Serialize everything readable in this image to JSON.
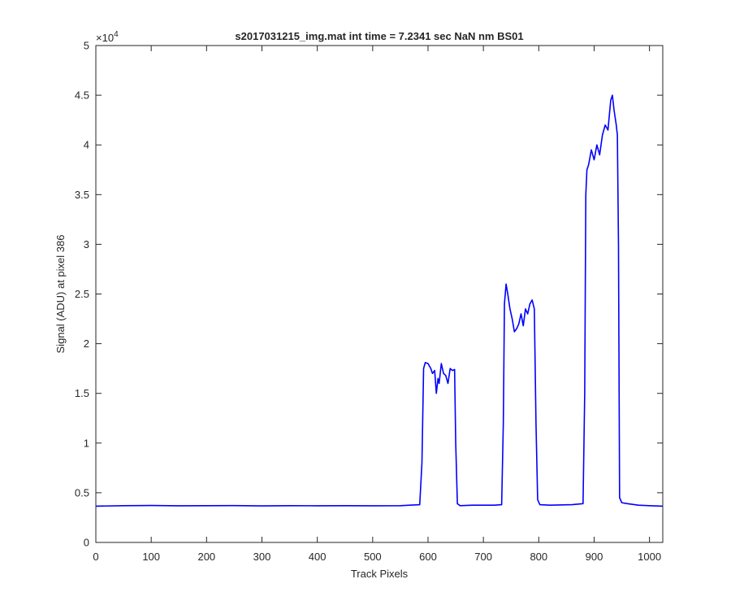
{
  "chart_data": {
    "type": "line",
    "title": "s2017031215_img.mat int time = 7.2341 sec  NaN nm BS01",
    "xlabel": "Track Pixels",
    "ylabel": "Signal (ADU) at pixel 386",
    "xlim": [
      0,
      1024
    ],
    "ylim": [
      0,
      50000
    ],
    "x_ticks": [
      0,
      100,
      200,
      300,
      400,
      500,
      600,
      700,
      800,
      900,
      1000
    ],
    "y_ticks": [
      0,
      5000,
      10000,
      15000,
      20000,
      25000,
      30000,
      35000,
      40000,
      45000,
      50000
    ],
    "y_tick_labels": [
      "0",
      "0.5",
      "1",
      "1.5",
      "2",
      "2.5",
      "3",
      "3.5",
      "4",
      "4.5",
      "5"
    ],
    "y_exponent_label": "×10",
    "y_exponent_power": "4",
    "grid": false,
    "line_color": "#0000ff",
    "series": [
      {
        "x": [
          0,
          50,
          100,
          150,
          200,
          250,
          300,
          350,
          400,
          450,
          500,
          550,
          585,
          589,
          592,
          595,
          600,
          605,
          608,
          612,
          615,
          618,
          620,
          624,
          628,
          632,
          636,
          640,
          644,
          648,
          650,
          653,
          658,
          680,
          720,
          733,
          736,
          738,
          741,
          744,
          748,
          752,
          756,
          760,
          764,
          768,
          772,
          776,
          780,
          784,
          788,
          792,
          795,
          798,
          802,
          820,
          860,
          880,
          883,
          885,
          887,
          890,
          895,
          900,
          905,
          910,
          915,
          920,
          925,
          930,
          933,
          936,
          940,
          942,
          944,
          946,
          950,
          960,
          980,
          1000,
          1024
        ],
        "y": [
          3650,
          3700,
          3720,
          3690,
          3700,
          3710,
          3680,
          3700,
          3690,
          3700,
          3690,
          3700,
          3800,
          8000,
          17500,
          18100,
          18000,
          17500,
          17000,
          17300,
          15000,
          16500,
          16000,
          18000,
          17000,
          16800,
          16000,
          17500,
          17300,
          17400,
          10000,
          3900,
          3700,
          3750,
          3750,
          3800,
          12000,
          24000,
          26000,
          25000,
          23500,
          22500,
          21200,
          21500,
          22000,
          23000,
          21800,
          23500,
          23000,
          24000,
          24400,
          23500,
          12000,
          4300,
          3800,
          3750,
          3800,
          3900,
          15000,
          35000,
          37500,
          38000,
          39500,
          38500,
          40000,
          39000,
          41000,
          42000,
          41500,
          44500,
          45000,
          43500,
          42000,
          41000,
          30000,
          4500,
          4000,
          3900,
          3750,
          3700,
          3650
        ]
      }
    ]
  }
}
